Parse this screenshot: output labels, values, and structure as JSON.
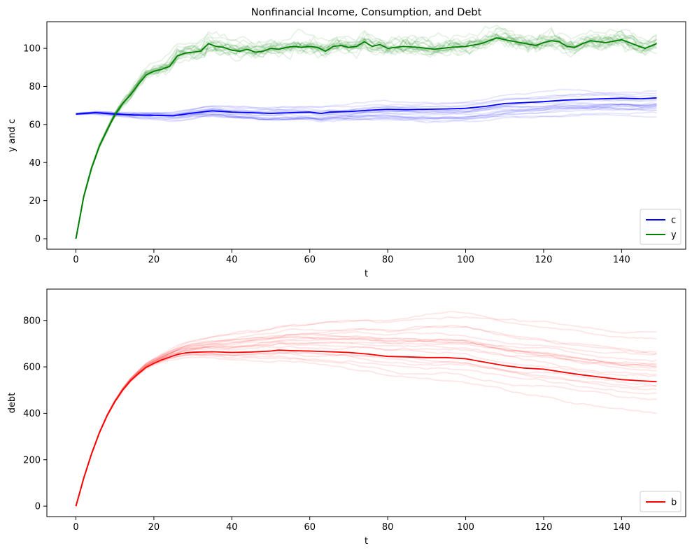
{
  "chart_data": [
    {
      "type": "line",
      "title": "Nonfinancial Income, Consumption, and Debt",
      "xlabel": "t",
      "ylabel": "y and c",
      "xlim": [
        -7.45,
        156.45
      ],
      "ylim": [
        -5.5,
        114
      ],
      "xticks": [
        0,
        20,
        40,
        60,
        80,
        100,
        120,
        140
      ],
      "yticks": [
        0,
        20,
        40,
        60,
        80,
        100
      ],
      "grid": false,
      "legend_position": "lower-right",
      "series": [
        {
          "name": "c",
          "color": "#0000ff",
          "x": [
            0,
            5,
            10,
            15,
            20,
            25,
            30,
            35,
            40,
            45,
            50,
            55,
            60,
            63,
            65,
            70,
            75,
            80,
            85,
            90,
            95,
            100,
            105,
            110,
            115,
            120,
            125,
            130,
            135,
            140,
            145,
            149
          ],
          "y": [
            65.5,
            66.2,
            65.5,
            65.0,
            64.8,
            64.6,
            66.0,
            67.2,
            66.5,
            66.2,
            65.8,
            66.2,
            66.5,
            65.8,
            66.5,
            66.8,
            67.5,
            68.0,
            67.8,
            68.0,
            68.2,
            68.5,
            69.5,
            71.0,
            71.5,
            72.0,
            72.8,
            73.2,
            73.5,
            73.8,
            73.5,
            74.0
          ]
        },
        {
          "name": "y",
          "color": "#008000",
          "x": [
            0,
            2,
            4,
            6,
            8,
            10,
            12,
            14,
            16,
            18,
            20,
            22,
            24,
            26,
            28,
            30,
            32,
            34,
            36,
            38,
            40,
            42,
            44,
            46,
            48,
            50,
            52,
            54,
            56,
            58,
            60,
            62,
            64,
            66,
            68,
            70,
            72,
            74,
            76,
            78,
            80,
            84,
            88,
            92,
            96,
            100,
            104,
            106,
            108,
            110,
            114,
            118,
            120,
            122,
            124,
            126,
            128,
            130,
            132,
            136,
            140,
            144,
            146,
            149
          ],
          "y": [
            0,
            22.0,
            37.0,
            48.5,
            57.0,
            65.0,
            71.0,
            75.5,
            81.0,
            86.0,
            88.0,
            89.0,
            90.5,
            96.0,
            97.5,
            98.0,
            98.5,
            102.5,
            101.0,
            100.5,
            99.0,
            98.5,
            99.5,
            98.0,
            98.5,
            100.0,
            99.5,
            100.5,
            101.0,
            100.5,
            101.0,
            100.5,
            98.5,
            101.0,
            101.5,
            100.5,
            101.0,
            103.5,
            101.0,
            102.0,
            100.0,
            101.0,
            100.5,
            99.5,
            100.5,
            101.0,
            102.5,
            104.0,
            105.5,
            104.5,
            103.0,
            101.5,
            103.0,
            104.0,
            103.5,
            101.0,
            100.5,
            102.5,
            104.0,
            103.0,
            104.5,
            101.5,
            100.0,
            102.5
          ]
        }
      ]
    },
    {
      "type": "line",
      "title": "",
      "xlabel": "t",
      "ylabel": "debt",
      "xlim": [
        -7.45,
        156.45
      ],
      "ylim": [
        -45,
        935
      ],
      "xticks": [
        0,
        20,
        40,
        60,
        80,
        100,
        120,
        140
      ],
      "yticks": [
        0,
        200,
        400,
        600,
        800
      ],
      "grid": false,
      "legend_position": "lower-right",
      "series": [
        {
          "name": "b",
          "color": "#ff0000",
          "x": [
            0,
            2,
            4,
            6,
            8,
            10,
            12,
            14,
            16,
            18,
            20,
            22,
            24,
            26,
            28,
            30,
            35,
            40,
            45,
            50,
            52,
            55,
            60,
            65,
            70,
            75,
            80,
            85,
            90,
            95,
            100,
            105,
            110,
            115,
            120,
            125,
            130,
            135,
            140,
            145,
            149
          ],
          "y": [
            0,
            120,
            225,
            315,
            390,
            450,
            500,
            540,
            570,
            598,
            615,
            630,
            642,
            653,
            660,
            663,
            665,
            662,
            664,
            668,
            672,
            670,
            668,
            665,
            662,
            655,
            645,
            643,
            640,
            640,
            635,
            620,
            605,
            595,
            590,
            577,
            565,
            555,
            545,
            540,
            536
          ]
        }
      ]
    }
  ]
}
